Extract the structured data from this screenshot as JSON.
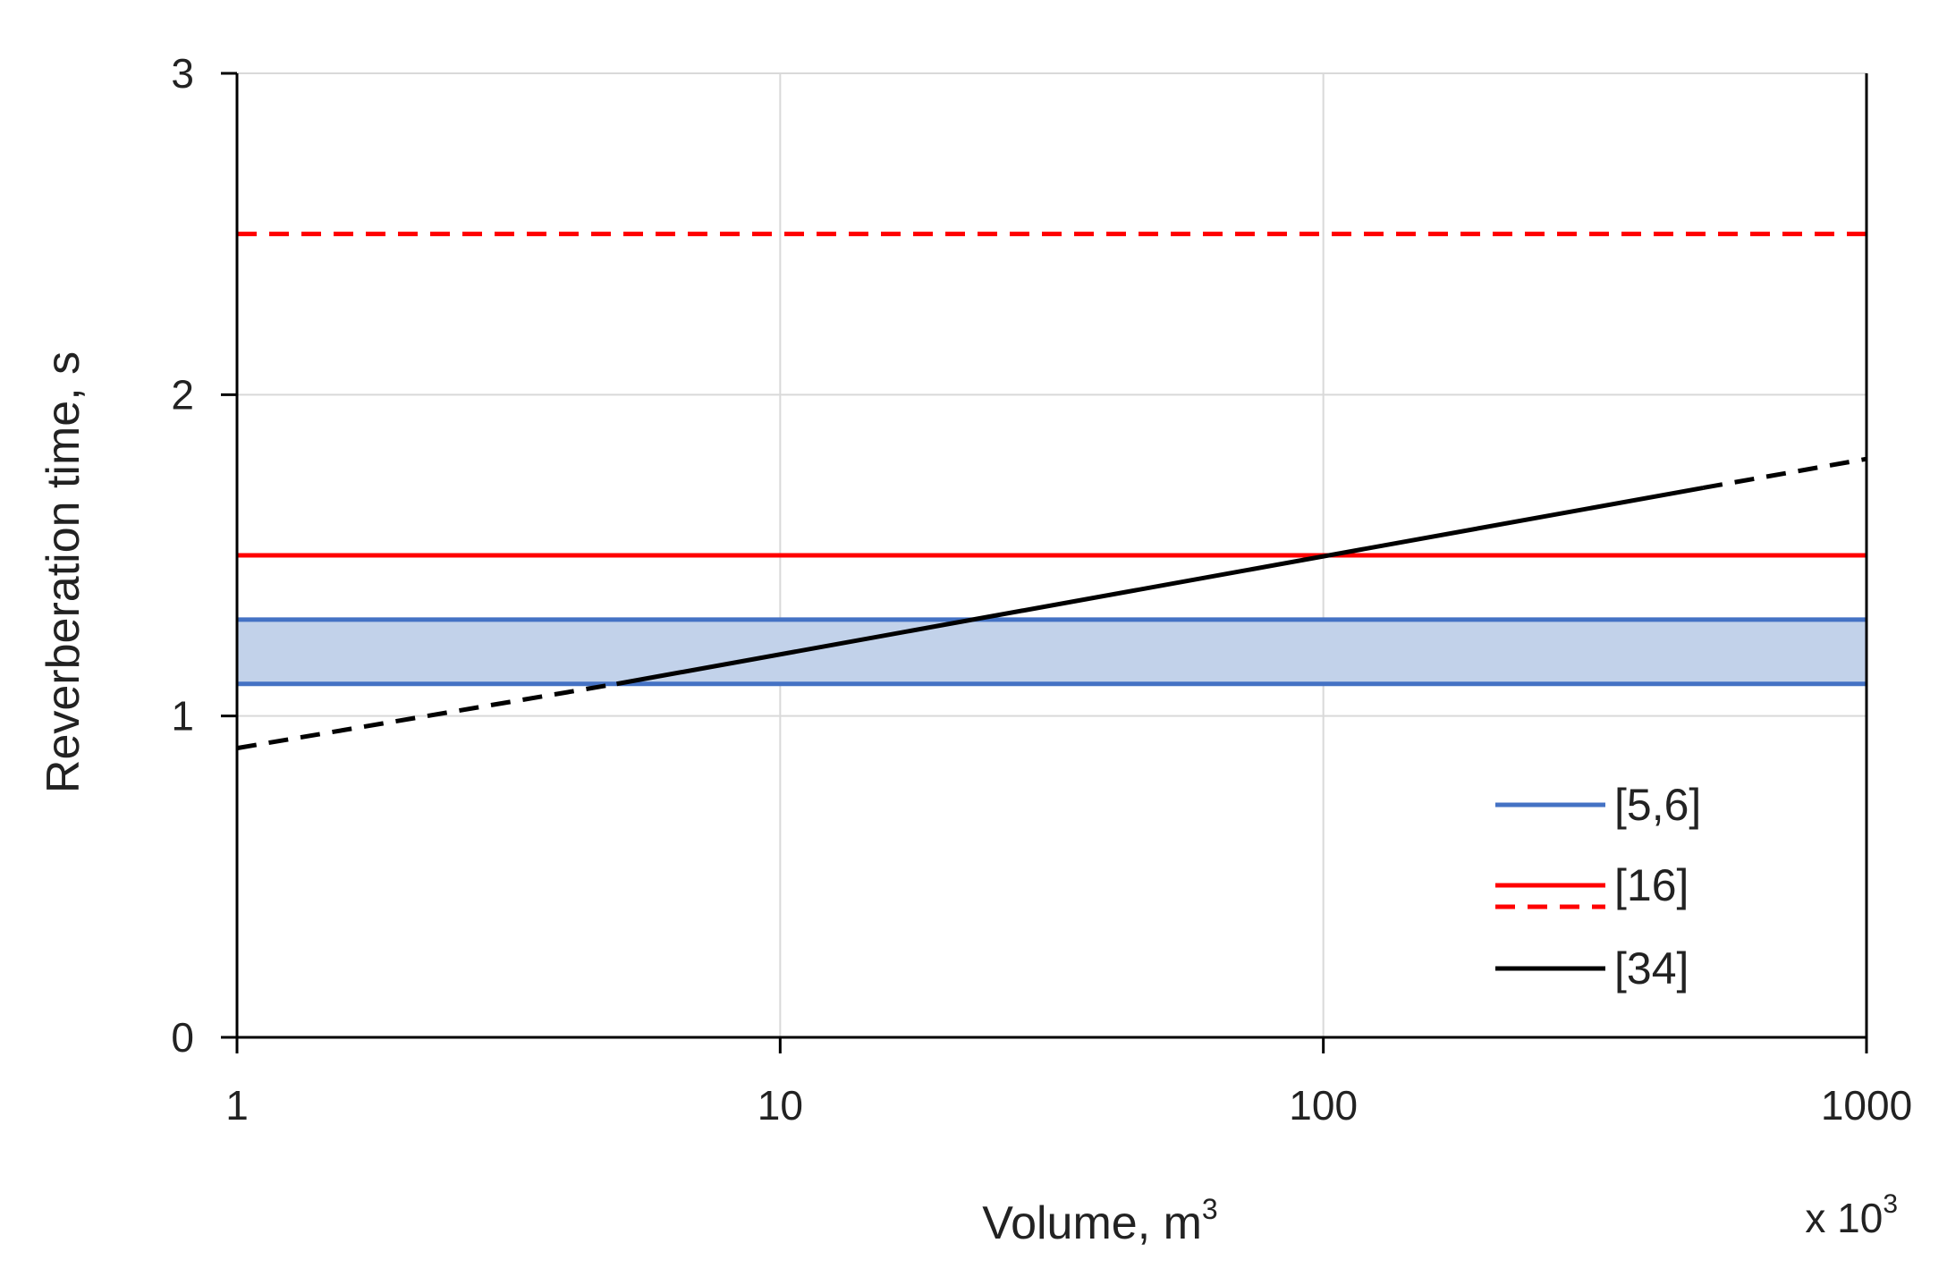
{
  "chart_data": {
    "type": "line",
    "title": "",
    "xlabel": "Volume, m",
    "xlabel_superscript": "3",
    "x_multiplier_label": "x 10",
    "x_multiplier_superscript": "3",
    "ylabel": "Reverberation time, s",
    "x_scale": "log",
    "xlim": [
      1,
      1000
    ],
    "ylim": [
      0,
      3
    ],
    "x_ticks": [
      1,
      10,
      100,
      1000
    ],
    "x_tick_labels": [
      "1",
      "10",
      "100",
      "1000"
    ],
    "y_ticks": [
      0,
      1,
      2,
      3
    ],
    "y_tick_labels": [
      "0",
      "1",
      "2",
      "3"
    ],
    "grid": true,
    "legend_position": "bottom-right",
    "series": [
      {
        "name": "[5,6]",
        "kind": "band",
        "color": "#4472c4",
        "fill": "#c2d2ea",
        "x": [
          1,
          1000
        ],
        "y_low": [
          1.1,
          1.1
        ],
        "y_high": [
          1.3,
          1.3
        ]
      },
      {
        "name": "[16]",
        "kind": "lines",
        "color": "#ff0000",
        "segments": [
          {
            "style": "solid",
            "x": [
              1,
              1000
            ],
            "y": [
              1.5,
              1.5
            ]
          },
          {
            "style": "dashed",
            "x": [
              1,
              1000
            ],
            "y": [
              2.5,
              2.5
            ]
          }
        ]
      },
      {
        "name": "[34]",
        "kind": "lines",
        "color": "#000000",
        "segments": [
          {
            "style": "dashed",
            "x": [
              1,
              5
            ],
            "y": [
              0.9,
              1.1
            ]
          },
          {
            "style": "solid",
            "x": [
              5,
              500
            ],
            "y": [
              1.1,
              1.71
            ]
          },
          {
            "style": "dashed",
            "x": [
              500,
              1000
            ],
            "y": [
              1.71,
              1.8
            ]
          }
        ]
      }
    ]
  }
}
